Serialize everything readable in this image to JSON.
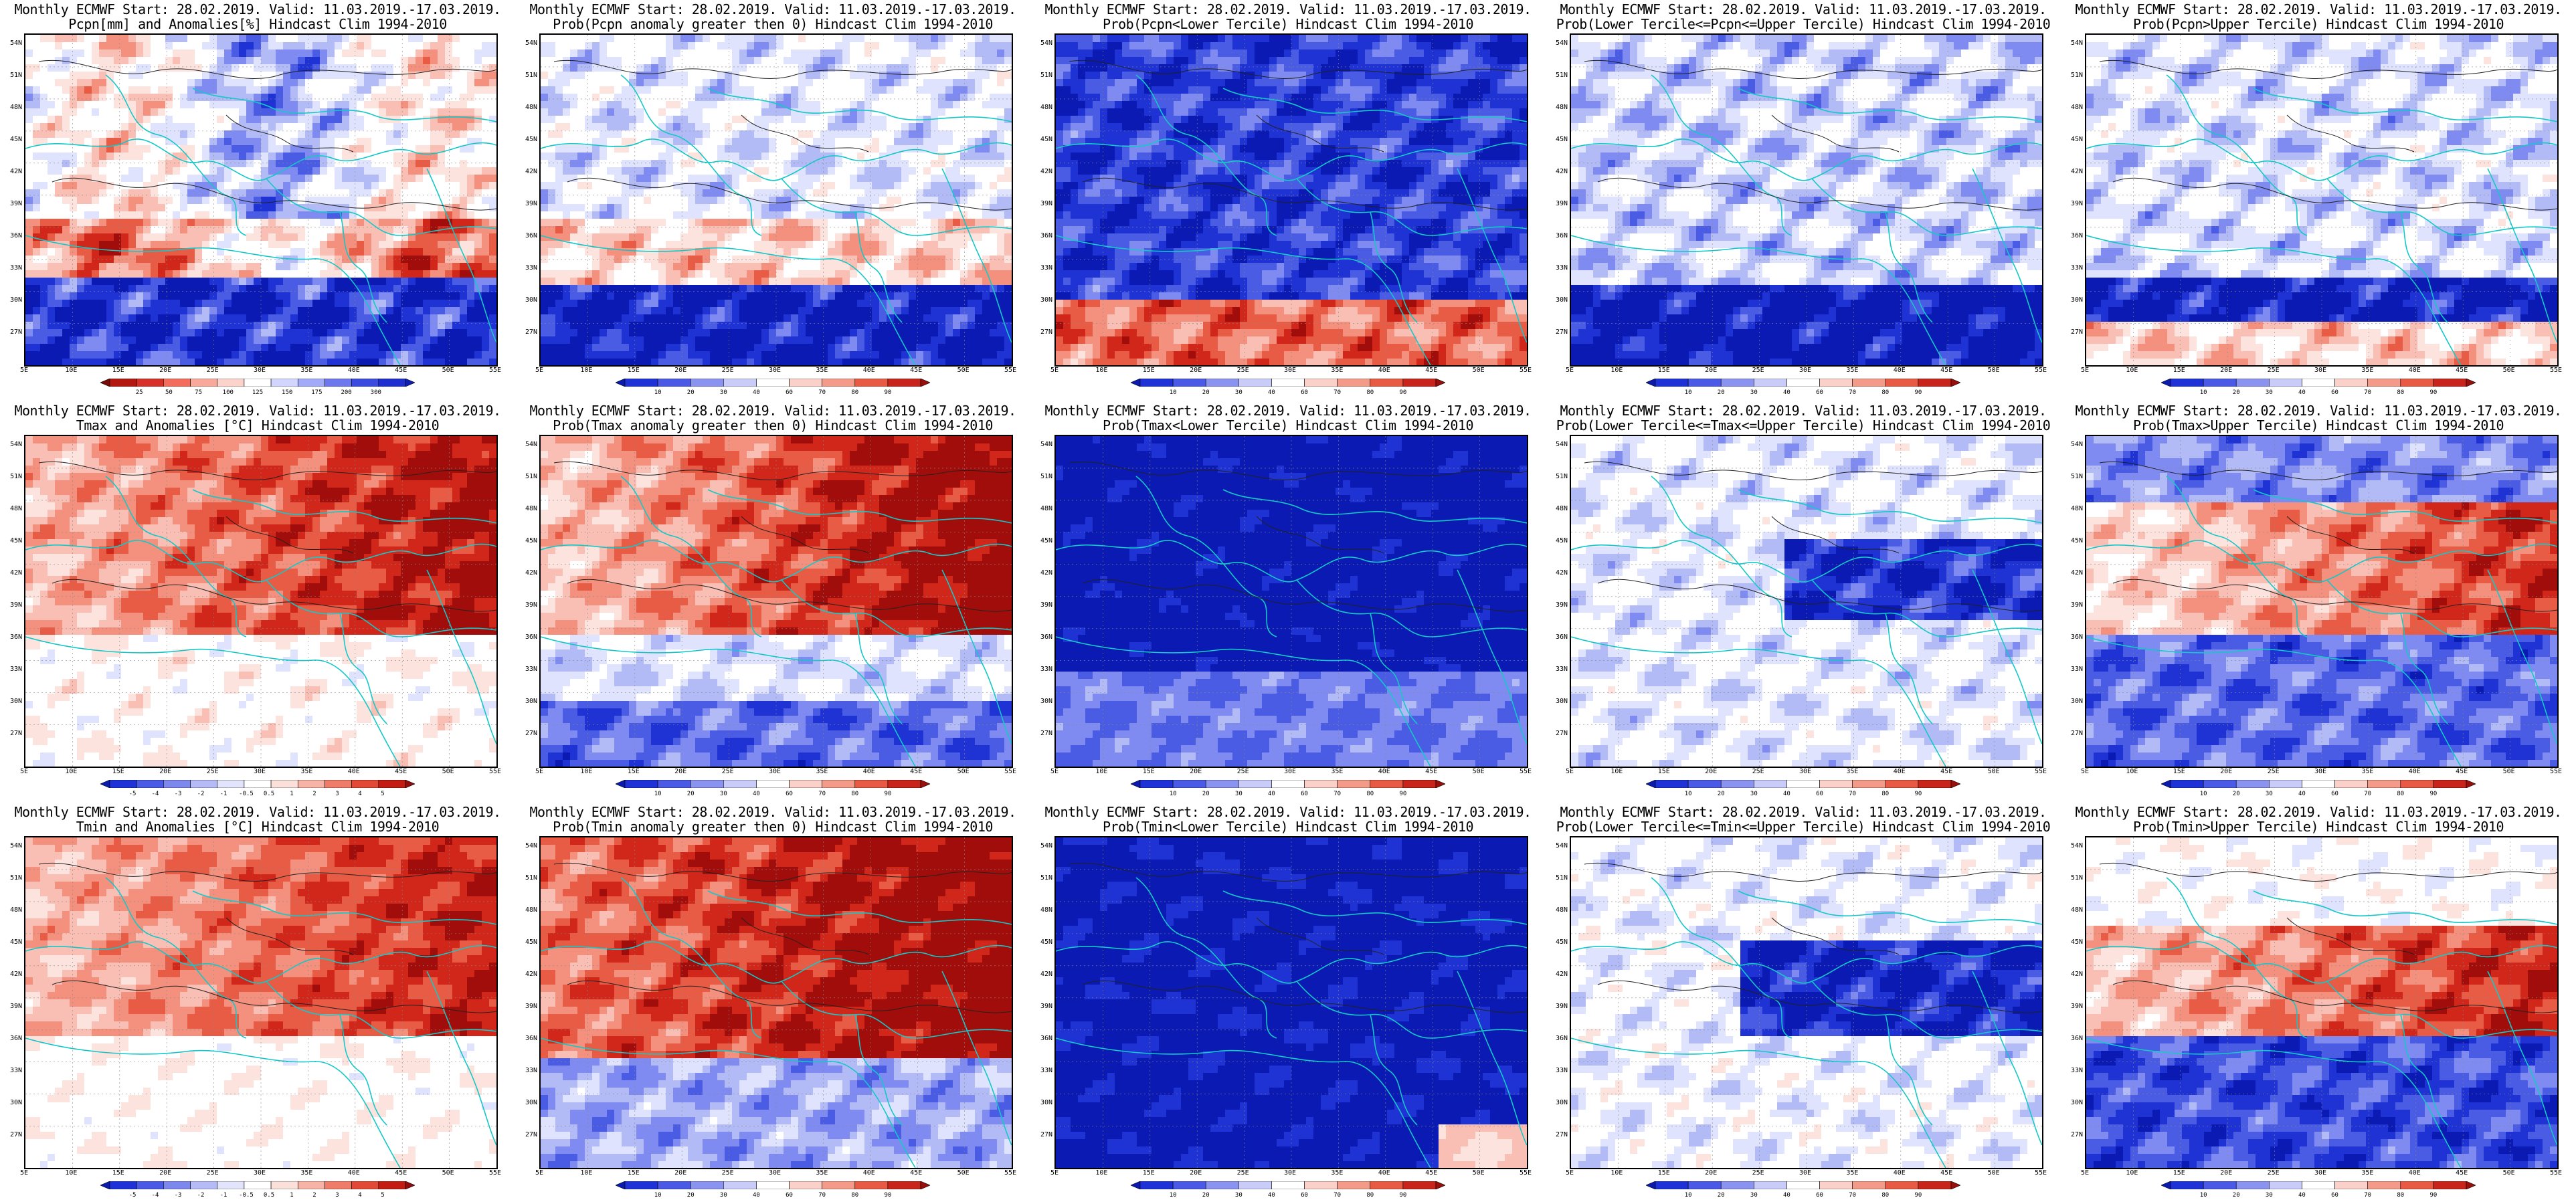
{
  "lat_labels": [
    "54N",
    "51N",
    "48N",
    "45N",
    "42N",
    "39N",
    "36N",
    "33N",
    "30N",
    "27N"
  ],
  "lon_labels": [
    "5E",
    "10E",
    "15E",
    "20E",
    "25E",
    "30E",
    "35E",
    "40E",
    "45E",
    "50E",
    "55E"
  ],
  "colorbars": {
    "pcpn_anom": {
      "colors": [
        "#7b0a06",
        "#b3170e",
        "#d73027",
        "#f46d5c",
        "#f9a99c",
        "#fcd3cb",
        "#ffffff",
        "#d2d6ff",
        "#a3abf8",
        "#6d78ee",
        "#3b4be0",
        "#1f2fd0",
        "#0d1fb8"
      ],
      "labels": [
        "25",
        "50",
        "75",
        "100",
        "125",
        "150",
        "175",
        "200",
        "300"
      ]
    },
    "prob": {
      "colors": [
        "#0a1bb4",
        "#1f32d8",
        "#4a5ae6",
        "#8a93f0",
        "#c9ccf8",
        "#ffffff",
        "#fad0c8",
        "#f49a88",
        "#e85a44",
        "#c8241a",
        "#9a0f0a"
      ],
      "labels": [
        "10",
        "20",
        "30",
        "40",
        "60",
        "70",
        "80",
        "90"
      ]
    },
    "temp_anom": {
      "colors": [
        "#0a1bb4",
        "#1f32d8",
        "#4a5ae6",
        "#7d88ee",
        "#b4bbf6",
        "#e1e4fb",
        "#ffffff",
        "#fbe0da",
        "#f6b3a6",
        "#ee7c69",
        "#e24a37",
        "#c31c12",
        "#930d0a"
      ],
      "labels": [
        "-5",
        "-4",
        "-3",
        "-2",
        "-1",
        "-0.5",
        "0.5",
        "1",
        "2",
        "3",
        "4",
        "5"
      ]
    }
  },
  "panels": [
    {
      "t1": "Monthly ECMWF Start: 28.02.2019. Valid: 11.03.2019.-17.03.2019.",
      "t2": "Pcpn[mm] and Anomalies[%] Hindcast Clim 1994-2010",
      "cbar": "pcpn_anom",
      "pattern": "pcpn_anom",
      "name": "pcpn-anomaly-map"
    },
    {
      "t1": "Monthly ECMWF Start: 28.02.2019. Valid: 11.03.2019.-17.03.2019.",
      "t2": "Prob(Pcpn anomaly greater then 0) Hindcast Clim 1994-2010",
      "cbar": "prob",
      "pattern": "pcpn_pos",
      "name": "pcpn-prob-positive-map"
    },
    {
      "t1": "Monthly ECMWF Start: 28.02.2019. Valid: 11.03.2019.-17.03.2019.",
      "t2": "Prob(Pcpn<Lower Tercile) Hindcast Clim 1994-2010",
      "cbar": "prob",
      "pattern": "pcpn_low",
      "name": "pcpn-prob-lower-map"
    },
    {
      "t1": "Monthly ECMWF Start: 28.02.2019. Valid: 11.03.2019.-17.03.2019.",
      "t2": "Prob(Lower Tercile<=Pcpn<=Upper Tercile) Hindcast Clim 1994-2010",
      "cbar": "prob",
      "pattern": "pcpn_mid",
      "name": "pcpn-prob-middle-map"
    },
    {
      "t1": "Monthly ECMWF Start: 28.02.2019. Valid: 11.03.2019.-17.03.2019.",
      "t2": "Prob(Pcpn>Upper Tercile) Hindcast Clim 1994-2010",
      "cbar": "prob",
      "pattern": "pcpn_up",
      "name": "pcpn-prob-upper-map"
    },
    {
      "t1": "Monthly ECMWF Start: 28.02.2019. Valid: 11.03.2019.-17.03.2019.",
      "t2": "Tmax and Anomalies [°C] Hindcast Clim 1994-2010",
      "cbar": "temp_anom",
      "pattern": "tmax_anom",
      "name": "tmax-anomaly-map"
    },
    {
      "t1": "Monthly ECMWF Start: 28.02.2019. Valid: 11.03.2019.-17.03.2019.",
      "t2": "Prob(Tmax anomaly greater then 0) Hindcast Clim 1994-2010",
      "cbar": "prob",
      "pattern": "tmax_pos",
      "name": "tmax-prob-positive-map"
    },
    {
      "t1": "Monthly ECMWF Start: 28.02.2019. Valid: 11.03.2019.-17.03.2019.",
      "t2": "Prob(Tmax<Lower Tercile) Hindcast Clim 1994-2010",
      "cbar": "prob",
      "pattern": "tmax_low",
      "name": "tmax-prob-lower-map"
    },
    {
      "t1": "Monthly ECMWF Start: 28.02.2019. Valid: 11.03.2019.-17.03.2019.",
      "t2": "Prob(Lower Tercile<=Tmax<=Upper Tercile) Hindcast Clim 1994-2010",
      "cbar": "prob",
      "pattern": "tmax_mid",
      "name": "tmax-prob-middle-map"
    },
    {
      "t1": "Monthly ECMWF Start: 28.02.2019. Valid: 11.03.2019.-17.03.2019.",
      "t2": "Prob(Tmax>Upper Tercile) Hindcast Clim 1994-2010",
      "cbar": "prob",
      "pattern": "tmax_up",
      "name": "tmax-prob-upper-map"
    },
    {
      "t1": "Monthly ECMWF Start: 28.02.2019. Valid: 11.03.2019.-17.03.2019.",
      "t2": "Tmin and Anomalies [°C] Hindcast Clim 1994-2010",
      "cbar": "temp_anom",
      "pattern": "tmin_anom",
      "name": "tmin-anomaly-map"
    },
    {
      "t1": "Monthly ECMWF Start: 28.02.2019. Valid: 11.03.2019.-17.03.2019.",
      "t2": "Prob(Tmin anomaly greater then 0) Hindcast Clim 1994-2010",
      "cbar": "prob",
      "pattern": "tmin_pos",
      "name": "tmin-prob-positive-map"
    },
    {
      "t1": "Monthly ECMWF Start: 28.02.2019. Valid: 11.03.2019.-17.03.2019.",
      "t2": "Prob(Tmin<Lower Tercile) Hindcast Clim 1994-2010",
      "cbar": "prob",
      "pattern": "tmin_low",
      "name": "tmin-prob-lower-map"
    },
    {
      "t1": "Monthly ECMWF Start: 28.02.2019. Valid: 11.03.2019.-17.03.2019.",
      "t2": "Prob(Lower Tercile<=Tmin<=Upper Tercile) Hindcast Clim 1994-2010",
      "cbar": "prob",
      "pattern": "tmin_mid",
      "name": "tmin-prob-middle-map"
    },
    {
      "t1": "Monthly ECMWF Start: 28.02.2019. Valid: 11.03.2019.-17.03.2019.",
      "t2": "Prob(Tmin>Upper Tercile) Hindcast Clim 1994-2010",
      "cbar": "prob",
      "pattern": "tmin_up",
      "name": "tmin-prob-upper-map"
    }
  ]
}
